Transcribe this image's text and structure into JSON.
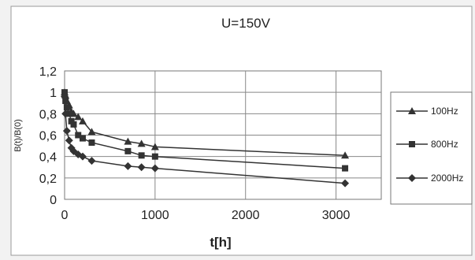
{
  "chart_data": {
    "type": "line",
    "title": "U=150V",
    "xlabel": "t[h]",
    "ylabel": "B(t)/B(0)",
    "xlim": [
      0,
      3500
    ],
    "ylim": [
      0,
      1.2
    ],
    "xticks": [
      "0",
      "1000",
      "2000",
      "3000"
    ],
    "yticks": [
      "0",
      "0,2",
      "0,4",
      "0,6",
      "0,8",
      "1",
      "1,2"
    ],
    "grid": true,
    "legend_position": "right",
    "series": [
      {
        "name": "100Hz",
        "marker": "triangle",
        "x": [
          0,
          10,
          25,
          50,
          75,
          100,
          150,
          200,
          300,
          700,
          850,
          1000,
          3100
        ],
        "y": [
          1.0,
          0.97,
          0.92,
          0.88,
          0.82,
          0.8,
          0.77,
          0.73,
          0.63,
          0.54,
          0.52,
          0.49,
          0.41
        ]
      },
      {
        "name": "800Hz",
        "marker": "square",
        "x": [
          0,
          10,
          25,
          50,
          75,
          100,
          150,
          200,
          300,
          700,
          850,
          1000,
          3100
        ],
        "y": [
          1.0,
          0.92,
          0.86,
          0.8,
          0.73,
          0.7,
          0.6,
          0.57,
          0.53,
          0.45,
          0.41,
          0.4,
          0.29
        ]
      },
      {
        "name": "2000Hz",
        "marker": "diamond",
        "x": [
          0,
          10,
          25,
          50,
          75,
          100,
          150,
          200,
          300,
          700,
          850,
          1000,
          3100
        ],
        "y": [
          0.96,
          0.8,
          0.64,
          0.55,
          0.48,
          0.45,
          0.42,
          0.4,
          0.36,
          0.31,
          0.3,
          0.29,
          0.15
        ]
      }
    ]
  }
}
